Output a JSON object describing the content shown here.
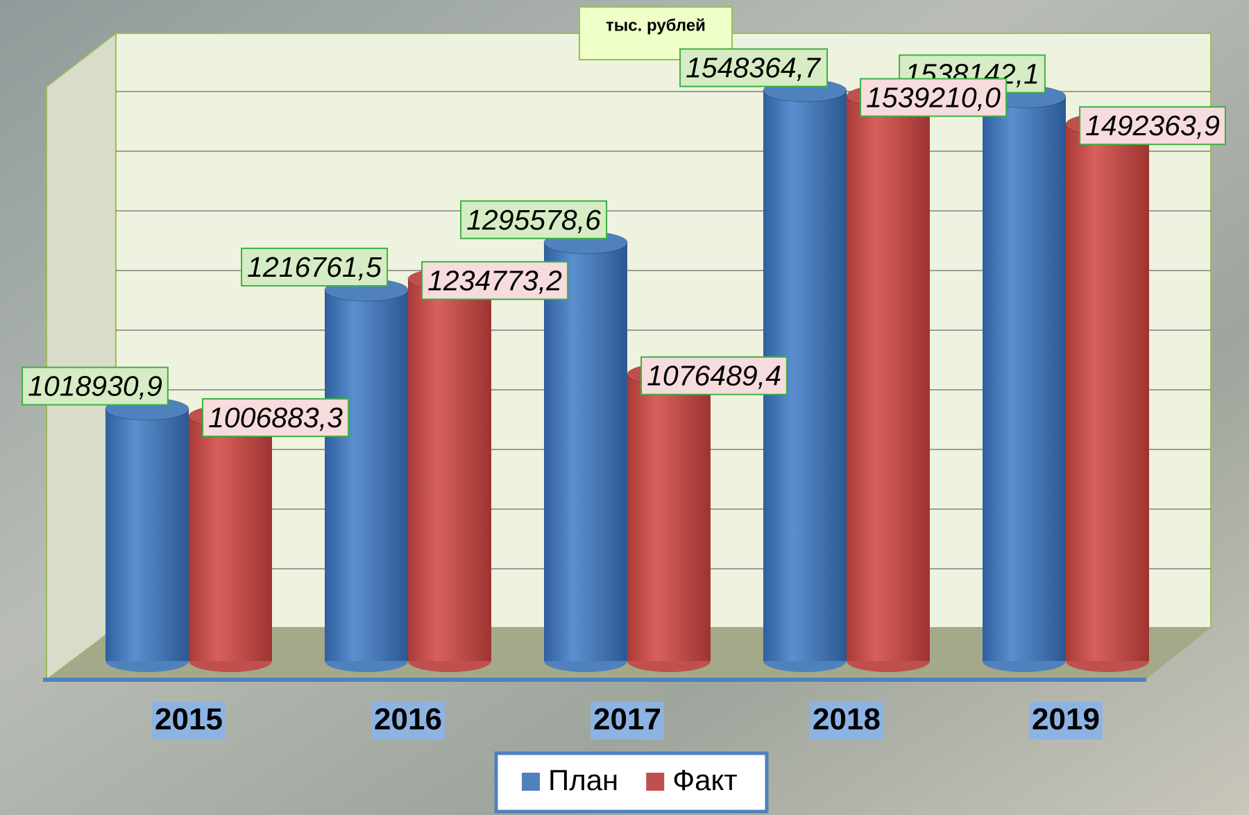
{
  "chart_data": {
    "type": "bar3d",
    "title": "тыс. рублей",
    "categories": [
      "2015",
      "2016",
      "2017",
      "2018",
      "2019"
    ],
    "series": [
      {
        "name": "План",
        "color": "#4f81bd",
        "values": [
          1018930.9,
          1216761.5,
          1295578.6,
          1548364.7,
          1538142.1
        ],
        "value_labels": [
          "1018930,9",
          "1216761,5",
          "1295578,6",
          "1548364,7",
          "1538142,1"
        ]
      },
      {
        "name": "Факт",
        "color": "#c0504d",
        "values": [
          1006883.3,
          1234773.2,
          1076489.4,
          1539210.0,
          1492363.9
        ],
        "value_labels": [
          "1006883,3",
          "1234773,2",
          "1076489,4",
          "1539210,0",
          "1492363,9"
        ]
      }
    ],
    "ylim": [
      600000,
      1600000
    ]
  }
}
